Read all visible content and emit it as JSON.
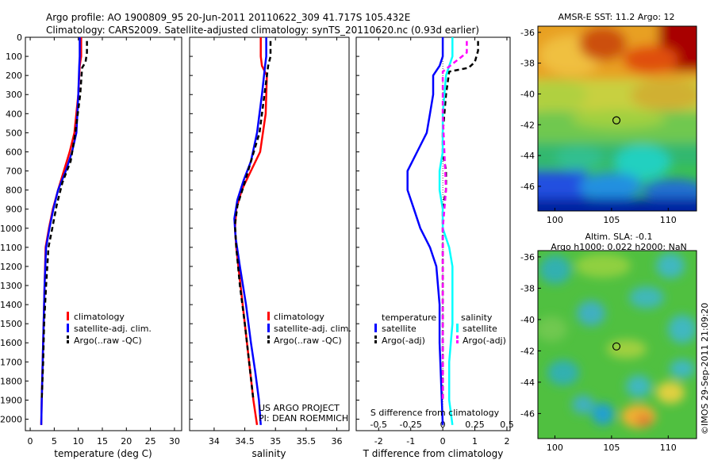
{
  "header": {
    "title_line1": "Argo profile: AO 1900809_95 20-Jun-2011 20110622_309 41.717S 105.432E",
    "title_line2": "Climatology: CARS2009. Satellite-adjusted climatology: synTS_20110620.nc (0.93d earlier)"
  },
  "colors": {
    "climatology": "#ff0000",
    "satellite": "#0000ff",
    "argo": "#000000",
    "salinity_satellite": "#00ffff",
    "salinity_argo": "#ff00ff"
  },
  "depth_axis": {
    "ticks": [
      0,
      100,
      200,
      300,
      400,
      500,
      600,
      700,
      800,
      900,
      1000,
      1100,
      1200,
      1300,
      1400,
      1500,
      1600,
      1700,
      1800,
      1900,
      2000
    ],
    "range": [
      0,
      2060
    ]
  },
  "chart_data": [
    {
      "id": "temperature",
      "type": "line",
      "xlabel": "temperature (deg C)",
      "xlim": [
        -1,
        31.5
      ],
      "xticks": [
        0,
        5,
        10,
        15,
        20,
        25,
        30
      ],
      "legend": [
        "climatology",
        "satellite-adj. clim.",
        "Argo(..raw -QC)"
      ],
      "series": [
        {
          "name": "climatology",
          "color": "#ff0000",
          "dash": "",
          "x": [
            10.6,
            10.6,
            10.3,
            10.0,
            9.2,
            8.2,
            7.0,
            5.8,
            4.7,
            3.9,
            3.2,
            3.0,
            2.8,
            2.6,
            2.4,
            2.3
          ],
          "y": [
            0,
            100,
            150,
            300,
            500,
            600,
            700,
            800,
            900,
            1000,
            1100,
            1300,
            1500,
            1700,
            1900,
            2030
          ]
        },
        {
          "name": "satellite-adj. clim.",
          "color": "#0000ff",
          "dash": "",
          "x": [
            10.3,
            10.3,
            10.2,
            10.0,
            9.6,
            8.7,
            7.4,
            5.8,
            4.8,
            4.0,
            3.3,
            3.0,
            2.8,
            2.6,
            2.4,
            2.3
          ],
          "y": [
            0,
            100,
            150,
            300,
            500,
            600,
            700,
            800,
            900,
            1000,
            1100,
            1300,
            1500,
            1700,
            1900,
            2030
          ]
        },
        {
          "name": "Argo(..raw -QC)",
          "color": "#000000",
          "dash": "6,4",
          "x": [
            11.8,
            11.8,
            11.5,
            10.8,
            10.4,
            9.4,
            8.4,
            6.7,
            5.5,
            4.6,
            3.8,
            3.3,
            2.9,
            2.7,
            2.4
          ],
          "y": [
            20,
            80,
            130,
            160,
            300,
            500,
            650,
            760,
            880,
            1000,
            1100,
            1300,
            1500,
            1700,
            1900
          ]
        }
      ]
    },
    {
      "id": "salinity",
      "type": "line",
      "xlabel": "salinity",
      "xlim": [
        33.6,
        36.2
      ],
      "xticks": [
        34,
        34.5,
        35,
        35.5,
        36
      ],
      "legend": [
        "climatology",
        "satellite-adj. clim.",
        "Argo(..raw -QC)"
      ],
      "series": [
        {
          "name": "climatology",
          "color": "#ff0000",
          "dash": "",
          "x": [
            34.76,
            34.76,
            34.78,
            34.86,
            34.84,
            34.75,
            34.6,
            34.45,
            34.36,
            34.34,
            34.36,
            34.43,
            34.5,
            34.57,
            34.64,
            34.7
          ],
          "y": [
            0,
            100,
            150,
            200,
            400,
            600,
            700,
            800,
            900,
            1000,
            1100,
            1300,
            1500,
            1700,
            1900,
            2030
          ]
        },
        {
          "name": "satellite-adj. clim.",
          "color": "#0000ff",
          "dash": "",
          "x": [
            34.85,
            34.85,
            34.83,
            34.78,
            34.7,
            34.6,
            34.48,
            34.38,
            34.33,
            34.35,
            34.42,
            34.52,
            34.6,
            34.67,
            34.73,
            34.76
          ],
          "y": [
            0,
            100,
            150,
            300,
            500,
            650,
            750,
            850,
            950,
            1050,
            1200,
            1400,
            1600,
            1750,
            1900,
            2030
          ]
        },
        {
          "name": "Argo(..raw -QC)",
          "color": "#000000",
          "dash": "6,4",
          "x": [
            34.92,
            34.92,
            34.88,
            34.84,
            34.74,
            34.6,
            34.48,
            34.38,
            34.34,
            34.36,
            34.42,
            34.5,
            34.57,
            34.64
          ],
          "y": [
            20,
            100,
            150,
            250,
            500,
            650,
            780,
            880,
            980,
            1100,
            1300,
            1500,
            1700,
            1900
          ]
        }
      ],
      "annotation_line1": "US ARGO PROJECT",
      "annotation_line2": "PI: DEAN ROEMMICH"
    },
    {
      "id": "difference",
      "type": "line",
      "xlabel": "T difference from climatology",
      "xlabel_top": "S difference from climatology",
      "xlim": [
        -2.7,
        2.1
      ],
      "xticks": [
        -2,
        -1,
        0,
        1,
        2
      ],
      "xticks_top": [
        "-0.5",
        "-0.25",
        "0",
        "0.25",
        "0.5"
      ],
      "xticks_top_pos": [
        -2,
        -1,
        0,
        1,
        2
      ],
      "legend_temperature_title": "temperature",
      "legend_salinity_title": "salinity",
      "legend_temperature": [
        "satellite",
        "Argo(-adj)"
      ],
      "legend_salinity": [
        "satellite",
        "Argo(-adj)"
      ],
      "series": [
        {
          "name": "temperature satellite",
          "color": "#0000ff",
          "dash": "",
          "x": [
            0.0,
            0.0,
            -0.1,
            -0.3,
            -0.3,
            -0.4,
            -0.5,
            -0.8,
            -1.1,
            -1.1,
            -0.9,
            -0.7,
            -0.4,
            -0.2,
            -0.1,
            -0.1,
            0.0
          ],
          "y": [
            0,
            100,
            150,
            200,
            300,
            400,
            500,
            600,
            700,
            800,
            900,
            1000,
            1100,
            1200,
            1400,
            1600,
            2030
          ]
        },
        {
          "name": "temperature Argo(-adj)",
          "color": "#000000",
          "dash": "6,4",
          "x": [
            1.1,
            1.1,
            1.0,
            0.8,
            0.2,
            0.1,
            0.0,
            0.0,
            0.1,
            0.1,
            0.0,
            0.0,
            0.0,
            0.0,
            0.0
          ],
          "y": [
            20,
            70,
            130,
            160,
            180,
            300,
            500,
            600,
            700,
            800,
            900,
            1000,
            1200,
            1400,
            1900
          ]
        },
        {
          "name": "salinity satellite",
          "color": "#00ffff",
          "dash": "",
          "x": [
            0.3,
            0.3,
            0.1,
            0.0,
            0.0,
            -0.1,
            -0.1,
            0.0,
            0.0,
            0.2,
            0.3,
            0.3,
            0.3,
            0.2,
            0.2,
            0.3
          ],
          "y": [
            0,
            100,
            200,
            400,
            600,
            700,
            800,
            900,
            1000,
            1100,
            1200,
            1300,
            1500,
            1700,
            1900,
            2030
          ]
        },
        {
          "name": "salinity Argo(-adj)",
          "color": "#ff00ff",
          "dash": "6,4",
          "x": [
            0.75,
            0.75,
            0.6,
            0.0,
            0.0,
            0.1,
            0.0,
            0.0,
            0.0,
            0.0
          ],
          "y": [
            20,
            80,
            100,
            180,
            400,
            800,
            1000,
            1300,
            1600,
            1900
          ]
        }
      ]
    },
    {
      "id": "sst_map",
      "type": "heatmap",
      "title": "AMSR-E SST: 11.2 Argo: 12",
      "xticks": [
        100,
        105,
        110
      ],
      "yticks": [
        -36,
        -38,
        -40,
        -42,
        -44,
        -46
      ],
      "xlim": [
        98.5,
        112.5
      ],
      "ylim": [
        -47.6,
        -35.6
      ],
      "marker": {
        "lon": 105.432,
        "lat": -41.717
      }
    },
    {
      "id": "sla_map",
      "type": "heatmap",
      "title_line1": "Altim. SLA: -0.1",
      "title_line2": "Argo h1000: 0.022 h2000: NaN",
      "xticks": [
        100,
        105,
        110
      ],
      "yticks": [
        -36,
        -38,
        -40,
        -42,
        -44,
        -46
      ],
      "xlim": [
        98.5,
        112.5
      ],
      "ylim": [
        -47.6,
        -35.6
      ],
      "marker": {
        "lon": 105.432,
        "lat": -41.717
      }
    }
  ],
  "footer": {
    "side_label": "©IMOS 29-Sep-2011 21:09:20"
  }
}
